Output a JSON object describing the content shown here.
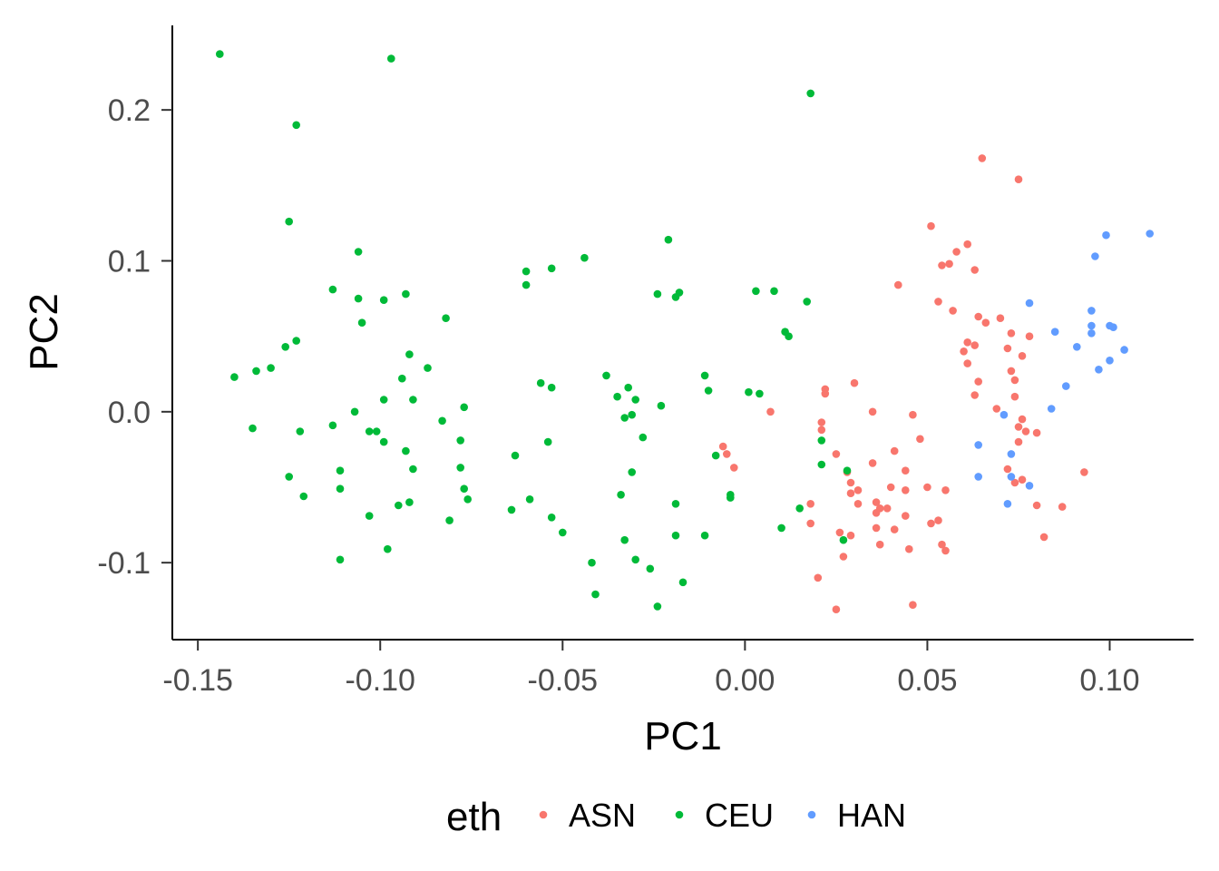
{
  "chart_data": {
    "type": "scatter",
    "xlabel": "PC1",
    "ylabel": "PC2",
    "xlim": [
      -0.157,
      0.123
    ],
    "ylim": [
      -0.151,
      0.256
    ],
    "x_ticks": [
      -0.15,
      -0.1,
      -0.05,
      0.0,
      0.05,
      0.1
    ],
    "x_tick_labels": [
      "-0.15",
      "-0.10",
      "-0.05",
      "0.00",
      "0.05",
      "0.10"
    ],
    "y_ticks": [
      -0.1,
      0.0,
      0.1,
      0.2
    ],
    "y_tick_labels": [
      "-0.1",
      "0.0",
      "0.1",
      "0.2"
    ],
    "grid": false,
    "legend": {
      "title": "eth",
      "position": "bottom"
    },
    "series": [
      {
        "name": "ASN",
        "color": "#F8766D",
        "points": [
          [
            0.065,
            0.168
          ],
          [
            0.075,
            0.154
          ],
          [
            0.051,
            0.123
          ],
          [
            0.061,
            0.111
          ],
          [
            0.058,
            0.106
          ],
          [
            0.056,
            0.098
          ],
          [
            0.054,
            0.097
          ],
          [
            0.063,
            0.094
          ],
          [
            0.042,
            0.084
          ],
          [
            0.053,
            0.073
          ],
          [
            0.057,
            0.067
          ],
          [
            0.064,
            0.063
          ],
          [
            0.07,
            0.062
          ],
          [
            0.066,
            0.059
          ],
          [
            0.073,
            0.052
          ],
          [
            0.078,
            0.05
          ],
          [
            0.061,
            0.046
          ],
          [
            0.063,
            0.044
          ],
          [
            0.072,
            0.042
          ],
          [
            0.06,
            0.04
          ],
          [
            0.076,
            0.037
          ],
          [
            0.061,
            0.032
          ],
          [
            0.073,
            0.027
          ],
          [
            0.074,
            0.021
          ],
          [
            0.064,
            0.02
          ],
          [
            0.074,
            0.01
          ],
          [
            0.063,
            0.011
          ],
          [
            0.069,
            0.002
          ],
          [
            0.03,
            0.019
          ],
          [
            0.022,
            0.015
          ],
          [
            0.022,
            0.012
          ],
          [
            0.007,
            0.0
          ],
          [
            0.035,
            0.0
          ],
          [
            0.046,
            -0.002
          ],
          [
            0.021,
            -0.007
          ],
          [
            0.076,
            -0.005
          ],
          [
            0.075,
            -0.01
          ],
          [
            0.077,
            -0.013
          ],
          [
            0.08,
            -0.014
          ],
          [
            0.075,
            -0.02
          ],
          [
            0.021,
            -0.012
          ],
          [
            0.048,
            -0.018
          ],
          [
            0.041,
            -0.026
          ],
          [
            0.025,
            -0.028
          ],
          [
            0.035,
            -0.034
          ],
          [
            -0.006,
            -0.023
          ],
          [
            -0.005,
            -0.028
          ],
          [
            -0.003,
            -0.037
          ],
          [
            0.072,
            -0.038
          ],
          [
            0.028,
            -0.04
          ],
          [
            0.044,
            -0.039
          ],
          [
            0.076,
            -0.045
          ],
          [
            0.093,
            -0.04
          ],
          [
            0.029,
            -0.047
          ],
          [
            0.04,
            -0.05
          ],
          [
            0.031,
            -0.052
          ],
          [
            0.05,
            -0.05
          ],
          [
            0.055,
            -0.052
          ],
          [
            0.074,
            -0.047
          ],
          [
            0.044,
            -0.052
          ],
          [
            0.029,
            -0.054
          ],
          [
            0.018,
            -0.061
          ],
          [
            0.031,
            -0.061
          ],
          [
            0.036,
            -0.06
          ],
          [
            0.037,
            -0.064
          ],
          [
            0.039,
            -0.064
          ],
          [
            0.08,
            -0.062
          ],
          [
            0.087,
            -0.063
          ],
          [
            0.036,
            -0.067
          ],
          [
            0.044,
            -0.069
          ],
          [
            0.051,
            -0.074
          ],
          [
            0.053,
            -0.072
          ],
          [
            0.018,
            -0.074
          ],
          [
            0.036,
            -0.077
          ],
          [
            0.041,
            -0.078
          ],
          [
            0.026,
            -0.08
          ],
          [
            0.029,
            -0.082
          ],
          [
            0.082,
            -0.083
          ],
          [
            0.037,
            -0.088
          ],
          [
            0.045,
            -0.091
          ],
          [
            0.054,
            -0.088
          ],
          [
            0.055,
            -0.092
          ],
          [
            0.027,
            -0.096
          ],
          [
            0.02,
            -0.11
          ],
          [
            0.025,
            -0.131
          ],
          [
            0.046,
            -0.128
          ]
        ]
      },
      {
        "name": "CEU",
        "color": "#00BA38",
        "points": [
          [
            -0.144,
            0.237
          ],
          [
            -0.097,
            0.234
          ],
          [
            0.018,
            0.211
          ],
          [
            -0.123,
            0.19
          ],
          [
            -0.125,
            0.126
          ],
          [
            -0.021,
            0.114
          ],
          [
            -0.106,
            0.106
          ],
          [
            -0.044,
            0.102
          ],
          [
            -0.053,
            0.095
          ],
          [
            -0.06,
            0.093
          ],
          [
            -0.06,
            0.084
          ],
          [
            -0.113,
            0.081
          ],
          [
            0.008,
            0.08
          ],
          [
            0.003,
            0.08
          ],
          [
            -0.093,
            0.078
          ],
          [
            -0.106,
            0.075
          ],
          [
            -0.099,
            0.074
          ],
          [
            -0.024,
            0.078
          ],
          [
            -0.018,
            0.079
          ],
          [
            -0.019,
            0.076
          ],
          [
            0.017,
            0.073
          ],
          [
            -0.082,
            0.062
          ],
          [
            -0.105,
            0.059
          ],
          [
            0.011,
            0.053
          ],
          [
            0.012,
            0.05
          ],
          [
            -0.123,
            0.047
          ],
          [
            -0.126,
            0.043
          ],
          [
            -0.092,
            0.038
          ],
          [
            -0.134,
            0.027
          ],
          [
            -0.13,
            0.029
          ],
          [
            -0.14,
            0.023
          ],
          [
            -0.087,
            0.029
          ],
          [
            -0.094,
            0.022
          ],
          [
            -0.038,
            0.024
          ],
          [
            -0.011,
            0.024
          ],
          [
            -0.056,
            0.019
          ],
          [
            -0.053,
            0.016
          ],
          [
            -0.032,
            0.016
          ],
          [
            -0.01,
            0.014
          ],
          [
            0.001,
            0.013
          ],
          [
            0.004,
            0.012
          ],
          [
            -0.035,
            0.01
          ],
          [
            -0.091,
            0.008
          ],
          [
            -0.099,
            0.008
          ],
          [
            -0.03,
            0.008
          ],
          [
            -0.077,
            0.003
          ],
          [
            -0.023,
            0.004
          ],
          [
            -0.107,
            0.0
          ],
          [
            -0.031,
            -0.002
          ],
          [
            -0.033,
            -0.004
          ],
          [
            -0.083,
            -0.006
          ],
          [
            -0.113,
            -0.009
          ],
          [
            -0.135,
            -0.011
          ],
          [
            -0.103,
            -0.013
          ],
          [
            -0.101,
            -0.013
          ],
          [
            -0.122,
            -0.013
          ],
          [
            -0.028,
            -0.017
          ],
          [
            -0.078,
            -0.019
          ],
          [
            -0.054,
            -0.02
          ],
          [
            0.021,
            -0.019
          ],
          [
            -0.099,
            -0.02
          ],
          [
            -0.093,
            -0.026
          ],
          [
            -0.063,
            -0.029
          ],
          [
            -0.008,
            -0.029
          ],
          [
            0.021,
            -0.035
          ],
          [
            -0.078,
            -0.037
          ],
          [
            -0.111,
            -0.039
          ],
          [
            -0.091,
            -0.038
          ],
          [
            -0.031,
            -0.04
          ],
          [
            0.028,
            -0.039
          ],
          [
            -0.125,
            -0.043
          ],
          [
            -0.111,
            -0.051
          ],
          [
            -0.077,
            -0.051
          ],
          [
            -0.004,
            -0.055
          ],
          [
            -0.034,
            -0.055
          ],
          [
            -0.121,
            -0.056
          ],
          [
            -0.004,
            -0.057
          ],
          [
            -0.076,
            -0.058
          ],
          [
            -0.059,
            -0.058
          ],
          [
            -0.092,
            -0.06
          ],
          [
            -0.095,
            -0.062
          ],
          [
            -0.019,
            -0.061
          ],
          [
            -0.064,
            -0.065
          ],
          [
            0.015,
            -0.064
          ],
          [
            -0.103,
            -0.069
          ],
          [
            -0.053,
            -0.07
          ],
          [
            -0.081,
            -0.072
          ],
          [
            0.01,
            -0.077
          ],
          [
            -0.05,
            -0.08
          ],
          [
            -0.019,
            -0.082
          ],
          [
            -0.011,
            -0.082
          ],
          [
            -0.033,
            -0.085
          ],
          [
            0.027,
            -0.085
          ],
          [
            -0.098,
            -0.091
          ],
          [
            -0.111,
            -0.098
          ],
          [
            -0.03,
            -0.098
          ],
          [
            -0.042,
            -0.1
          ],
          [
            -0.026,
            -0.104
          ],
          [
            -0.017,
            -0.113
          ],
          [
            -0.041,
            -0.121
          ],
          [
            -0.024,
            -0.129
          ]
        ]
      },
      {
        "name": "HAN",
        "color": "#619CFF",
        "points": [
          [
            0.111,
            0.118
          ],
          [
            0.099,
            0.117
          ],
          [
            0.096,
            0.103
          ],
          [
            0.078,
            0.072
          ],
          [
            0.095,
            0.067
          ],
          [
            0.095,
            0.057
          ],
          [
            0.1,
            0.057
          ],
          [
            0.101,
            0.056
          ],
          [
            0.095,
            0.052
          ],
          [
            0.085,
            0.053
          ],
          [
            0.091,
            0.043
          ],
          [
            0.104,
            0.041
          ],
          [
            0.1,
            0.034
          ],
          [
            0.097,
            0.028
          ],
          [
            0.088,
            0.017
          ],
          [
            0.084,
            0.002
          ],
          [
            0.071,
            -0.002
          ],
          [
            0.064,
            -0.022
          ],
          [
            0.073,
            -0.028
          ],
          [
            0.073,
            -0.043
          ],
          [
            0.064,
            -0.043
          ],
          [
            0.078,
            -0.049
          ],
          [
            0.072,
            -0.061
          ]
        ]
      }
    ]
  }
}
